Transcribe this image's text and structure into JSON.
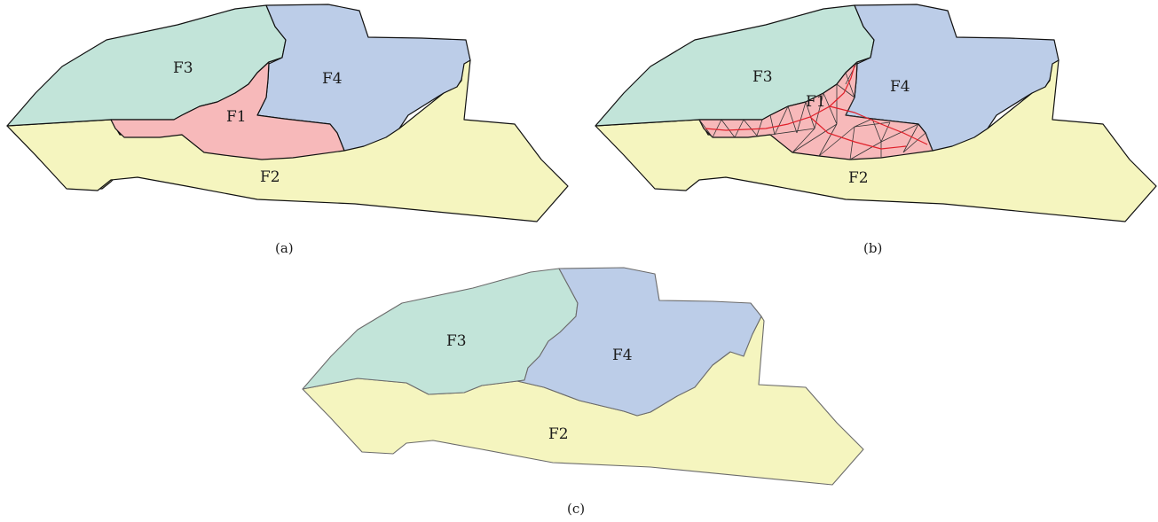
{
  "figure": {
    "colors": {
      "F1": "#f7b9ba",
      "F2": "#f5f5bf",
      "F3": "#c2e4d9",
      "F4": "#bccde8",
      "skeleton": "#e0202a",
      "outline_dark": "#111111",
      "outline_grey": "#6b6b6b"
    },
    "panels": [
      {
        "id": "a",
        "caption": "(a)",
        "regions": [
          {
            "key": "F1",
            "label": "F1"
          },
          {
            "key": "F2",
            "label": "F2"
          },
          {
            "key": "F3",
            "label": "F3"
          },
          {
            "key": "F4",
            "label": "F4"
          }
        ]
      },
      {
        "id": "b",
        "caption": "(b)",
        "regions": [
          {
            "key": "F1",
            "label": "F1"
          },
          {
            "key": "F2",
            "label": "F2"
          },
          {
            "key": "F3",
            "label": "F3"
          },
          {
            "key": "F4",
            "label": "F4"
          }
        ]
      },
      {
        "id": "c",
        "caption": "(c)",
        "regions": [
          {
            "key": "F2",
            "label": "F2"
          },
          {
            "key": "F3",
            "label": "F3"
          },
          {
            "key": "F4",
            "label": "F4"
          }
        ]
      }
    ]
  }
}
